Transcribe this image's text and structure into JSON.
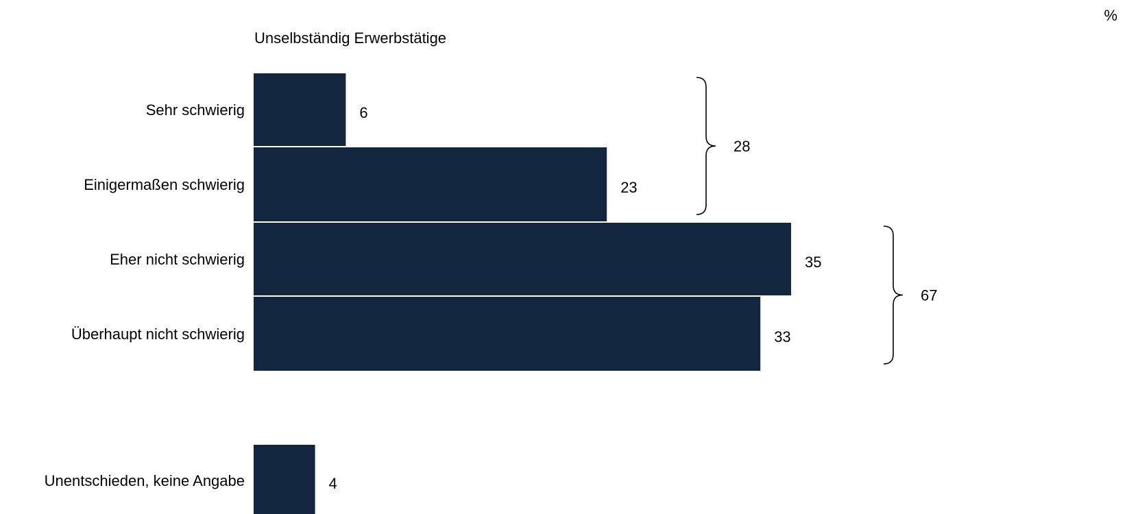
{
  "chart_data": {
    "type": "bar",
    "orientation": "horizontal",
    "subtitle": "Unselbständig Erwerbstätige",
    "unit": "%",
    "categories": [
      "Sehr schwierig",
      "Einigermaßen schwierig",
      "Eher nicht schwierig",
      "Überhaupt nicht schwierig",
      "Unentschieden, keine Angabe"
    ],
    "values": [
      6,
      23,
      35,
      33,
      4
    ],
    "data_labels": [
      "6",
      "23",
      "35",
      "33",
      "4"
    ],
    "groups": [
      {
        "members": [
          "Sehr schwierig",
          "Einigermaßen schwierig"
        ],
        "total": 28,
        "label": "28"
      },
      {
        "members": [
          "Eher nicht schwierig",
          "Überhaupt nicht schwierig"
        ],
        "total": 67,
        "label": "67"
      }
    ],
    "xlim": [
      0,
      35
    ],
    "grid": false,
    "legend": "none",
    "colors": {
      "bar": "#12263f",
      "text": "#000000",
      "brace": "#000000"
    }
  }
}
